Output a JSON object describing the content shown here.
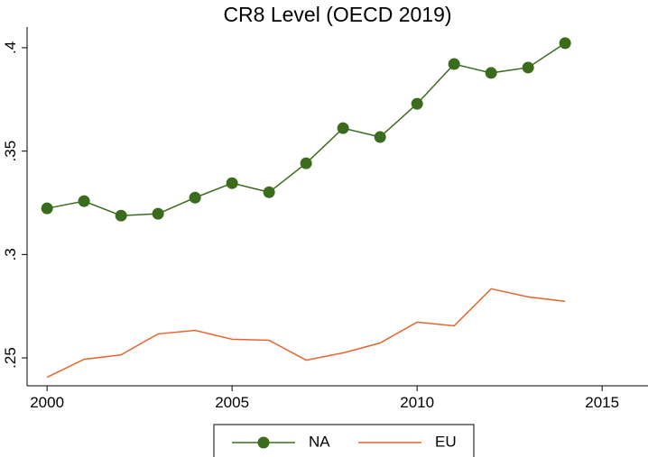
{
  "chart_data": {
    "type": "line",
    "title": "CR8 Level (OECD 2019)",
    "x": [
      2000,
      2001,
      2002,
      2003,
      2004,
      2005,
      2006,
      2007,
      2008,
      2009,
      2010,
      2011,
      2012,
      2013,
      2014
    ],
    "series": [
      {
        "name": "NA",
        "color": "#3b6b1c",
        "marker": true,
        "values": [
          0.3223,
          0.3258,
          0.3188,
          0.3197,
          0.3275,
          0.3345,
          0.3301,
          0.3441,
          0.3611,
          0.3568,
          0.3729,
          0.3921,
          0.3878,
          0.3904,
          0.4022
        ]
      },
      {
        "name": "EU",
        "color": "#e8642c",
        "marker": false,
        "values": [
          0.2406,
          0.2493,
          0.2515,
          0.2616,
          0.2633,
          0.259,
          0.2585,
          0.2489,
          0.2524,
          0.2572,
          0.2673,
          0.2655,
          0.2834,
          0.2795,
          0.2773
        ]
      }
    ],
    "xlim": [
      1999.46,
      2016.24
    ],
    "xticks": [
      2000,
      2005,
      2010,
      2015
    ],
    "ylim": [
      0.2365,
      0.41
    ],
    "yticks": [
      {
        "value": 0.25,
        "label": ".25"
      },
      {
        "value": 0.3,
        "label": ".3"
      },
      {
        "value": 0.35,
        "label": ".35"
      },
      {
        "value": 0.4,
        "label": ".4"
      }
    ],
    "grid": false,
    "legend": "bottom"
  }
}
